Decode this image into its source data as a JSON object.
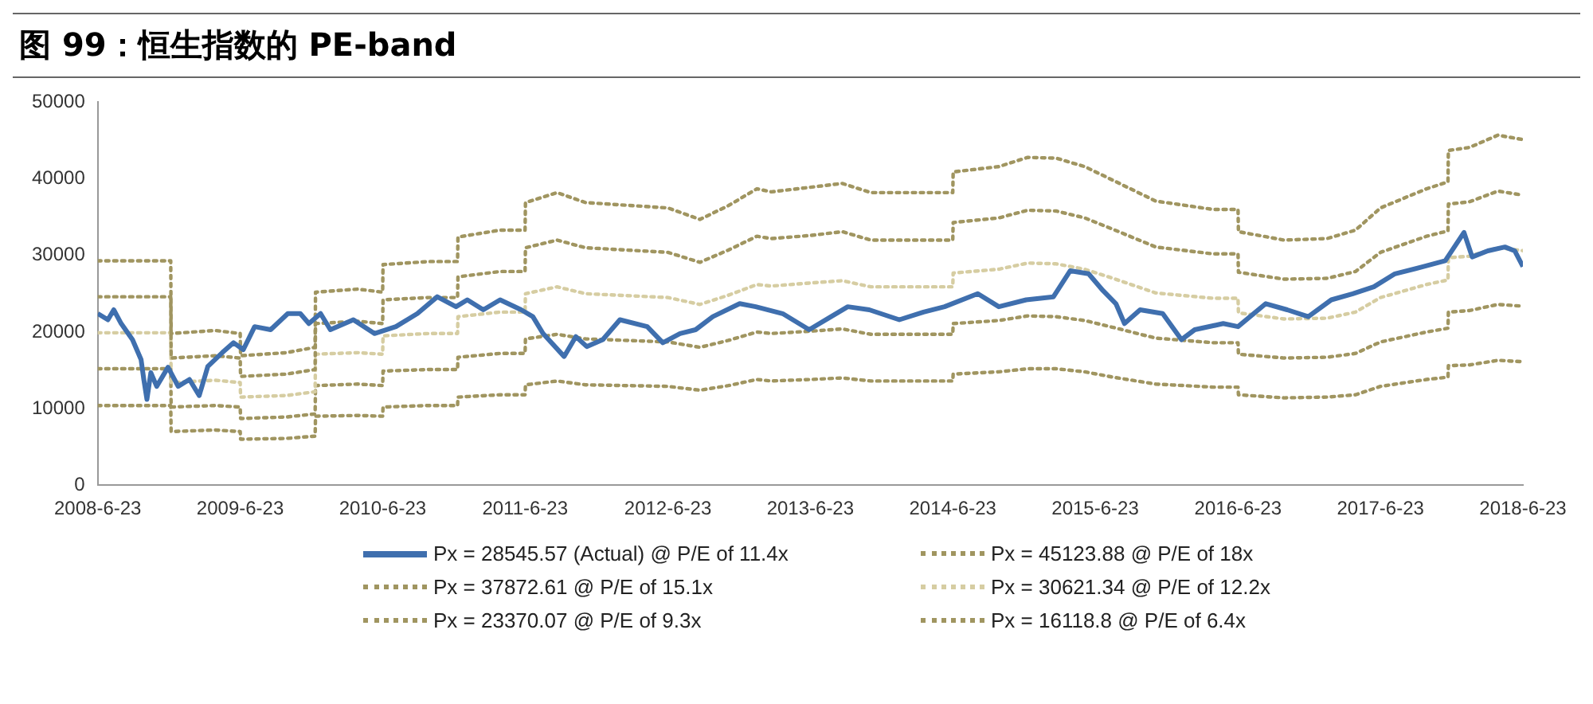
{
  "chart_data": {
    "type": "line",
    "title": "图 99：恒生指数的 PE-band",
    "xlim": [
      "2008-06-23",
      "2018-06-23"
    ],
    "xticks": [
      {
        "value": "2008-06-23",
        "label": "2008-6-23"
      },
      {
        "value": "2009-06-23",
        "label": "2009-6-23"
      },
      {
        "value": "2010-06-23",
        "label": "2010-6-23"
      },
      {
        "value": "2011-06-23",
        "label": "2011-6-23"
      },
      {
        "value": "2012-06-23",
        "label": "2012-6-23"
      },
      {
        "value": "2013-06-23",
        "label": "2013-6-23"
      },
      {
        "value": "2014-06-23",
        "label": "2014-6-23"
      },
      {
        "value": "2015-06-23",
        "label": "2015-6-23"
      },
      {
        "value": "2016-06-23",
        "label": "2016-6-23"
      },
      {
        "value": "2017-06-23",
        "label": "2017-6-23"
      },
      {
        "value": "2018-06-23",
        "label": "2018-6-23"
      }
    ],
    "ylim": [
      0,
      50000
    ],
    "yticks": [
      0,
      10000,
      20000,
      30000,
      40000,
      50000
    ],
    "grid": false,
    "legend": "bottom",
    "marker": "none",
    "x": [
      "2008-06-23",
      "2008-12-27",
      "2008-12-28",
      "2009-04-20",
      "2009-06-23",
      "2009-06-24",
      "2009-10-19",
      "2010-01-01",
      "2010-01-02",
      "2010-04-20",
      "2010-06-23",
      "2010-06-24",
      "2010-10-19",
      "2011-01-01",
      "2011-01-02",
      "2011-04-20",
      "2011-06-23",
      "2011-06-24",
      "2011-09-13",
      "2011-11-25",
      "2012-06-23",
      "2012-09-13",
      "2012-11-25",
      "2013-02-06",
      "2013-03-15",
      "2013-06-23",
      "2013-09-13",
      "2013-11-25",
      "2014-06-23",
      "2014-06-24",
      "2014-10-19",
      "2015-01-01",
      "2015-03-15",
      "2015-05-27",
      "2015-08-08",
      "2015-11-25",
      "2016-04-20",
      "2016-06-23",
      "2016-06-24",
      "2016-10-19",
      "2017-02-06",
      "2017-04-20",
      "2017-06-23",
      "2017-10-19",
      "2017-12-13",
      "2017-12-14",
      "2018-02-06",
      "2018-04-20",
      "2018-06-23"
    ],
    "series": [
      {
        "name": "Px = 28545.57 (Actual) @ P/E of 11.4x",
        "color": "#3f6fae",
        "line_style": "solid",
        "x": [
          "2008-06-23",
          "2008-07-19",
          "2008-08-03",
          "2008-08-22",
          "2008-09-20",
          "2008-10-12",
          "2008-10-19",
          "2008-10-27",
          "2008-11-06",
          "2008-11-21",
          "2008-12-20",
          "2009-01-15",
          "2009-02-13",
          "2009-03-10",
          "2009-04-01",
          "2009-05-08",
          "2009-06-06",
          "2009-07-01",
          "2009-07-30",
          "2009-09-09",
          "2009-10-23",
          "2009-11-24",
          "2009-12-16",
          "2010-01-15",
          "2010-02-09",
          "2010-04-09",
          "2010-06-02",
          "2010-07-27",
          "2010-09-20",
          "2010-11-10",
          "2010-12-28",
          "2011-01-26",
          "2011-03-08",
          "2011-04-20",
          "2011-06-13",
          "2011-07-13",
          "2011-08-08",
          "2011-10-01",
          "2011-10-31",
          "2011-11-28",
          "2012-01-08",
          "2012-02-21",
          "2012-05-01",
          "2012-06-10",
          "2012-07-24",
          "2012-09-02",
          "2012-10-16",
          "2012-12-24",
          "2013-02-03",
          "2013-04-13",
          "2013-06-20",
          "2013-08-15",
          "2013-09-27",
          "2013-11-21",
          "2014-02-06",
          "2014-04-09",
          "2014-06-02",
          "2014-08-26",
          "2014-10-19",
          "2014-12-28",
          "2015-03-08",
          "2015-04-20",
          "2015-06-06",
          "2015-07-13",
          "2015-08-15",
          "2015-09-06",
          "2015-10-16",
          "2015-12-13",
          "2016-01-30",
          "2016-03-04",
          "2016-05-16",
          "2016-06-23",
          "2016-09-02",
          "2016-10-27",
          "2016-12-20",
          "2017-02-17",
          "2017-04-13",
          "2017-06-06",
          "2017-07-30",
          "2017-10-08",
          "2017-12-06",
          "2018-01-23",
          "2018-02-13",
          "2018-03-25",
          "2018-05-08",
          "2018-06-02",
          "2018-06-23"
        ],
        "values": [
          22400,
          21600,
          22900,
          21100,
          19000,
          16400,
          13800,
          11200,
          14700,
          12900,
          15400,
          12900,
          13800,
          11700,
          15500,
          17300,
          18600,
          17700,
          20700,
          20300,
          22400,
          22400,
          21100,
          22400,
          20300,
          21600,
          19800,
          20700,
          22400,
          24600,
          23300,
          24200,
          22900,
          24200,
          22900,
          22000,
          19800,
          16800,
          19400,
          18100,
          19000,
          21600,
          20700,
          18600,
          19800,
          20300,
          22000,
          23700,
          23300,
          22400,
          20300,
          22000,
          23300,
          22900,
          21600,
          22600,
          23300,
          25000,
          23300,
          24200,
          24600,
          28000,
          27600,
          25400,
          23700,
          21100,
          22900,
          22400,
          19000,
          20300,
          21100,
          20700,
          23700,
          22900,
          22000,
          24200,
          25000,
          25900,
          27600,
          28500,
          29300,
          33000,
          29800,
          30600,
          31100,
          30600,
          28545.57
        ]
      },
      {
        "name": "Px = 45123.88 @ P/E of 18x",
        "color": "#a09560",
        "line_style": "dotted",
        "values": [
          29300,
          29300,
          19800,
          20200,
          19800,
          16900,
          17300,
          18000,
          25200,
          25600,
          25200,
          28800,
          29200,
          29200,
          32400,
          33300,
          33300,
          36900,
          38200,
          36900,
          36200,
          34700,
          36500,
          38700,
          38300,
          38900,
          39400,
          38200,
          38200,
          40900,
          41600,
          42800,
          42700,
          41600,
          39800,
          37100,
          36000,
          36000,
          33100,
          32000,
          32200,
          33300,
          36200,
          38700,
          39600,
          43700,
          44100,
          45700,
          45123.88
        ]
      },
      {
        "name": "Px = 37872.61 @ P/E of 15.1x",
        "color": "#a09560",
        "line_style": "dotted",
        "values": [
          24600,
          24600,
          16600,
          16900,
          16600,
          14200,
          14500,
          15100,
          21100,
          21400,
          21100,
          24200,
          24500,
          24500,
          27200,
          27900,
          27900,
          31000,
          32000,
          31000,
          30400,
          29100,
          30700,
          32500,
          32200,
          32600,
          33100,
          32000,
          32000,
          34300,
          34900,
          35900,
          35800,
          34900,
          33400,
          31100,
          30200,
          30200,
          27800,
          26900,
          27000,
          27900,
          30400,
          32500,
          33200,
          36700,
          37000,
          38400,
          37872.61
        ]
      },
      {
        "name": "Px = 30621.34 @ P/E of 12.2x",
        "color": "#d6cda2",
        "line_style": "dotted",
        "values": [
          19900,
          19900,
          13400,
          13700,
          13400,
          11500,
          11700,
          12200,
          17100,
          17300,
          17100,
          19500,
          19800,
          19800,
          22000,
          22600,
          22600,
          25000,
          25900,
          25000,
          24500,
          23600,
          24800,
          26200,
          26000,
          26400,
          26700,
          25900,
          25900,
          27700,
          28200,
          29000,
          28900,
          28200,
          27000,
          25100,
          24400,
          24400,
          22500,
          21700,
          21800,
          22600,
          24500,
          26200,
          26800,
          29700,
          29900,
          31000,
          30621.34
        ]
      },
      {
        "name": "Px = 23370.07 @ P/E of 9.3x",
        "color": "#a09560",
        "line_style": "dotted",
        "values": [
          15200,
          15200,
          10200,
          10400,
          10200,
          8700,
          8900,
          9300,
          13000,
          13200,
          13000,
          14900,
          15100,
          15100,
          16700,
          17200,
          17200,
          19100,
          19700,
          19100,
          18700,
          18000,
          18900,
          20000,
          19800,
          20100,
          20400,
          19700,
          19700,
          21100,
          21500,
          22100,
          22000,
          21500,
          20600,
          19200,
          18600,
          18600,
          17100,
          16600,
          16700,
          17200,
          18700,
          20000,
          20500,
          22600,
          22800,
          23600,
          23370.07
        ]
      },
      {
        "name": "Px = 16118.8 @ P/E of 6.4x",
        "color": "#a09560",
        "line_style": "dotted",
        "values": [
          10400,
          10400,
          7000,
          7200,
          7000,
          6000,
          6100,
          6400,
          9000,
          9100,
          9000,
          10200,
          10400,
          10400,
          11500,
          11800,
          11800,
          13100,
          13600,
          13100,
          12900,
          12400,
          13000,
          13800,
          13600,
          13800,
          14000,
          13600,
          13600,
          14500,
          14800,
          15200,
          15200,
          14800,
          14100,
          13200,
          12800,
          12800,
          11800,
          11400,
          11500,
          11800,
          12900,
          13800,
          14100,
          15600,
          15700,
          16300,
          16118.8
        ]
      }
    ]
  }
}
